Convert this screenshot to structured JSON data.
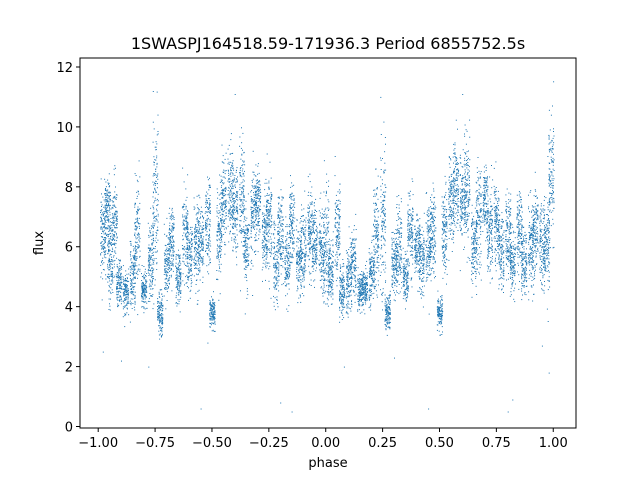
{
  "chart_data": {
    "type": "scatter",
    "title": "1SWASPJ164518.59-171936.3 Period 6855752.5s",
    "xlabel": "phase",
    "ylabel": "flux",
    "xlim": [
      -1.08,
      1.1
    ],
    "ylim": [
      -0.05,
      12.3
    ],
    "x_ticks": [
      -1.0,
      -0.75,
      -0.5,
      -0.25,
      0.0,
      0.25,
      0.5,
      0.75,
      1.0
    ],
    "x_tick_labels": [
      "−1.00",
      "−0.75",
      "−0.50",
      "−0.25",
      "0.00",
      "0.25",
      "0.50",
      "0.75",
      "1.00"
    ],
    "y_ticks": [
      0,
      2,
      4,
      6,
      8,
      10,
      12
    ],
    "y_tick_labels": [
      "0",
      "2",
      "4",
      "6",
      "8",
      "10",
      "12"
    ],
    "grid": false,
    "point_color": "#1f77b4",
    "series": [
      {
        "clusters": [
          [
            -0.98,
            6.5,
            1.0
          ],
          [
            -0.96,
            7.3,
            0.8
          ],
          [
            -0.95,
            5.5,
            1.0
          ],
          [
            -0.93,
            6.8,
            1.0
          ],
          [
            -0.91,
            4.8,
            0.6
          ],
          [
            -0.88,
            4.5,
            0.5
          ],
          [
            -0.85,
            5.0,
            0.8
          ],
          [
            -0.83,
            6.5,
            1.2
          ],
          [
            -0.8,
            4.6,
            0.4
          ],
          [
            -0.77,
            5.5,
            1.0
          ],
          [
            -0.75,
            7.5,
            1.8
          ],
          [
            -0.73,
            3.8,
            0.5
          ],
          [
            -0.7,
            5.5,
            0.8
          ],
          [
            -0.68,
            6.2,
            0.8
          ],
          [
            -0.65,
            5.0,
            0.6
          ],
          [
            -0.62,
            6.5,
            1.0
          ],
          [
            -0.6,
            5.8,
            0.8
          ],
          [
            -0.57,
            6.0,
            1.0
          ],
          [
            -0.55,
            6.2,
            0.8
          ],
          [
            -0.52,
            6.8,
            1.0
          ],
          [
            -0.5,
            3.8,
            0.4
          ],
          [
            -0.47,
            6.5,
            1.0
          ],
          [
            -0.45,
            7.5,
            1.0
          ],
          [
            -0.42,
            7.8,
            1.0
          ],
          [
            -0.4,
            7.2,
            1.0
          ],
          [
            -0.37,
            7.8,
            1.2
          ],
          [
            -0.35,
            6.0,
            1.0
          ],
          [
            -0.32,
            7.0,
            1.2
          ],
          [
            -0.3,
            7.5,
            0.8
          ],
          [
            -0.27,
            6.5,
            1.0
          ],
          [
            -0.25,
            6.8,
            1.0
          ],
          [
            -0.22,
            5.5,
            1.0
          ],
          [
            -0.2,
            6.5,
            1.0
          ],
          [
            -0.17,
            5.5,
            0.8
          ],
          [
            -0.15,
            6.8,
            1.0
          ],
          [
            -0.12,
            5.5,
            0.8
          ],
          [
            -0.1,
            6.0,
            1.0
          ],
          [
            -0.07,
            6.5,
            1.0
          ],
          [
            -0.05,
            6.2,
            0.8
          ],
          [
            -0.02,
            6.0,
            1.0
          ],
          [
            0.0,
            6.0,
            1.5
          ],
          [
            0.02,
            5.2,
            0.8
          ],
          [
            0.05,
            6.5,
            1.0
          ],
          [
            0.07,
            4.5,
            0.6
          ],
          [
            0.1,
            5.0,
            0.8
          ],
          [
            0.12,
            5.5,
            0.8
          ],
          [
            0.15,
            4.5,
            0.5
          ],
          [
            0.17,
            4.6,
            0.4
          ],
          [
            0.2,
            5.0,
            0.8
          ],
          [
            0.22,
            6.5,
            1.2
          ],
          [
            0.25,
            7.0,
            2.0
          ],
          [
            0.27,
            3.8,
            0.4
          ],
          [
            0.3,
            5.5,
            0.8
          ],
          [
            0.32,
            6.0,
            1.0
          ],
          [
            0.35,
            5.0,
            0.6
          ],
          [
            0.37,
            6.5,
            1.0
          ],
          [
            0.4,
            6.0,
            0.8
          ],
          [
            0.42,
            5.5,
            0.8
          ],
          [
            0.45,
            6.0,
            1.0
          ],
          [
            0.47,
            6.5,
            1.0
          ],
          [
            0.5,
            3.8,
            0.4
          ],
          [
            0.52,
            6.5,
            1.0
          ],
          [
            0.55,
            7.5,
            1.0
          ],
          [
            0.57,
            8.0,
            1.0
          ],
          [
            0.6,
            7.5,
            1.0
          ],
          [
            0.62,
            7.8,
            1.2
          ],
          [
            0.65,
            6.0,
            1.0
          ],
          [
            0.67,
            7.0,
            1.2
          ],
          [
            0.7,
            7.5,
            0.8
          ],
          [
            0.72,
            6.5,
            1.0
          ],
          [
            0.75,
            6.8,
            1.0
          ],
          [
            0.77,
            5.8,
            0.8
          ],
          [
            0.8,
            6.5,
            1.0
          ],
          [
            0.82,
            5.5,
            0.8
          ],
          [
            0.85,
            6.5,
            1.0
          ],
          [
            0.87,
            5.5,
            0.8
          ],
          [
            0.9,
            6.0,
            1.0
          ],
          [
            0.92,
            6.5,
            1.0
          ],
          [
            0.95,
            6.0,
            1.0
          ],
          [
            0.97,
            6.0,
            1.2
          ],
          [
            0.99,
            8.5,
            1.5
          ]
        ],
        "outliers": [
          [
            -0.98,
            2.5
          ],
          [
            -0.9,
            2.2
          ],
          [
            -0.55,
            0.6
          ],
          [
            -0.52,
            2.8
          ],
          [
            -0.2,
            0.8
          ],
          [
            -0.15,
            0.5
          ],
          [
            0.08,
            2.0
          ],
          [
            0.3,
            2.3
          ],
          [
            0.45,
            0.6
          ],
          [
            0.8,
            0.5
          ],
          [
            0.82,
            0.9
          ],
          [
            0.95,
            2.7
          ],
          [
            0.98,
            1.8
          ],
          [
            -0.78,
            2.0
          ],
          [
            0.6,
            11.1
          ],
          [
            -0.4,
            11.1
          ],
          [
            -0.76,
            11.2
          ],
          [
            0.24,
            11.0
          ]
        ]
      }
    ]
  }
}
